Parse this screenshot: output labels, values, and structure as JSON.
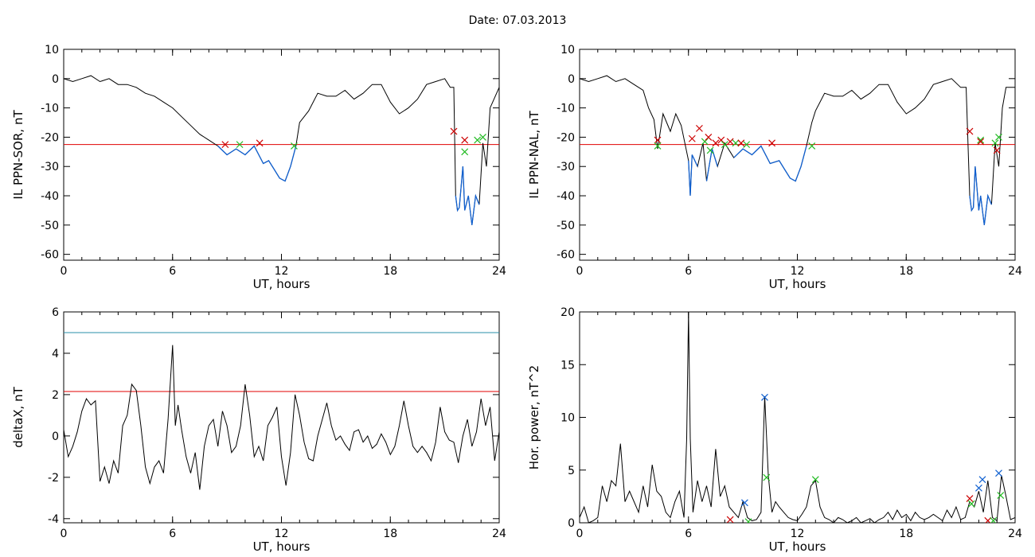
{
  "title": "Date:  07.03.2013",
  "chart_data": [
    {
      "id": "ppn-sor",
      "type": "line",
      "xlabel": "UT, hours",
      "ylabel": "IL PPN-SOR, nT",
      "xlim": [
        0,
        24
      ],
      "ylim": [
        -62,
        10
      ],
      "xticks": [
        0,
        6,
        12,
        18,
        24
      ],
      "yticks": [
        10,
        0,
        -10,
        -20,
        -30,
        -40,
        -50,
        -60
      ],
      "threshold": {
        "value": -22.5,
        "color": "#e00000"
      },
      "below_color": "#1060d0",
      "series": [
        {
          "color": "#000000",
          "x": [
            0,
            0.5,
            1,
            1.5,
            2,
            2.5,
            3,
            3.5,
            4,
            4.5,
            5,
            5.5,
            6,
            6.5,
            7,
            7.5,
            8,
            8.5,
            9,
            9.5,
            10,
            10.5,
            11,
            11.3,
            11.6,
            11.9,
            12.2,
            12.5,
            12.8,
            13,
            13.5,
            14,
            14.5,
            15,
            15.5,
            16,
            16.5,
            17,
            17.5,
            18,
            18.5,
            19,
            19.5,
            20,
            20.5,
            21,
            21.3,
            21.5,
            21.6,
            21.7,
            21.8,
            22,
            22.1,
            22.3,
            22.5,
            22.7,
            22.9,
            23.1,
            23.3,
            23.5,
            24
          ],
          "y": [
            0,
            -1,
            0,
            1,
            -1,
            0,
            -2,
            -2,
            -3,
            -5,
            -6,
            -8,
            -10,
            -13,
            -16,
            -19,
            -21,
            -23,
            -26,
            -24,
            -26,
            -23,
            -29,
            -28,
            -31,
            -34,
            -35,
            -30,
            -23,
            -15,
            -11,
            -5,
            -6,
            -6,
            -4,
            -7,
            -5,
            -2,
            -2,
            -8,
            -12,
            -10,
            -7,
            -2,
            -1,
            0,
            -3,
            -3,
            -40,
            -45,
            -44,
            -30,
            -45,
            -40,
            -50,
            -40,
            -43,
            -22,
            -30,
            -10,
            -3
          ]
        }
      ],
      "markers": [
        {
          "x": 8.9,
          "y": -22.5,
          "color": "#cc0000"
        },
        {
          "x": 9.7,
          "y": -22.5,
          "color": "#22bb22"
        },
        {
          "x": 10.8,
          "y": -22.0,
          "color": "#cc0000"
        },
        {
          "x": 12.7,
          "y": -23.0,
          "color": "#22bb22"
        },
        {
          "x": 21.5,
          "y": -18.0,
          "color": "#cc0000"
        },
        {
          "x": 22.1,
          "y": -25.0,
          "color": "#22bb22"
        },
        {
          "x": 22.1,
          "y": -21.0,
          "color": "#cc0000"
        },
        {
          "x": 22.8,
          "y": -21.0,
          "color": "#22bb22"
        },
        {
          "x": 23.1,
          "y": -20.0,
          "color": "#22bb22"
        }
      ]
    },
    {
      "id": "ppn-nal",
      "type": "line",
      "xlabel": "UT, hours",
      "ylabel": "IL PPN-NAL, nT",
      "xlim": [
        0,
        24
      ],
      "ylim": [
        -62,
        10
      ],
      "xticks": [
        0,
        6,
        12,
        18,
        24
      ],
      "yticks": [
        10,
        0,
        -10,
        -20,
        -30,
        -40,
        -50,
        -60
      ],
      "threshold": {
        "value": -22.5,
        "color": "#e00000"
      },
      "below_color": "#1060d0",
      "series": [
        {
          "color": "#000000",
          "x": [
            0,
            0.5,
            1,
            1.5,
            2,
            2.5,
            3,
            3.5,
            3.8,
            4.1,
            4.3,
            4.6,
            5,
            5.3,
            5.6,
            6,
            6.1,
            6.2,
            6.5,
            6.8,
            7,
            7.3,
            7.6,
            8,
            8.5,
            9,
            9.5,
            10,
            10.5,
            11,
            11.3,
            11.6,
            11.9,
            12.2,
            12.5,
            12.8,
            13,
            13.5,
            14,
            14.5,
            15,
            15.5,
            16,
            16.5,
            17,
            17.5,
            18,
            18.5,
            19,
            19.5,
            20,
            20.5,
            21,
            21.3,
            21.5,
            21.6,
            21.7,
            21.8,
            22,
            22.1,
            22.3,
            22.5,
            22.7,
            22.9,
            23.1,
            23.3,
            23.5,
            24
          ],
          "y": [
            0,
            -1,
            0,
            1,
            -1,
            0,
            -2,
            -4,
            -10,
            -14,
            -24,
            -12,
            -18,
            -12,
            -16,
            -28,
            -40,
            -26,
            -30,
            -22,
            -35,
            -24,
            -30,
            -22,
            -27,
            -24,
            -26,
            -23,
            -29,
            -28,
            -31,
            -34,
            -35,
            -30,
            -23,
            -15,
            -11,
            -5,
            -6,
            -6,
            -4,
            -7,
            -5,
            -2,
            -2,
            -8,
            -12,
            -10,
            -7,
            -2,
            -1,
            0,
            -3,
            -3,
            -40,
            -45,
            -44,
            -30,
            -45,
            -40,
            -50,
            -40,
            -43,
            -22,
            -30,
            -10,
            -3,
            -3
          ]
        }
      ],
      "markers": [
        {
          "x": 4.3,
          "y": -21.0,
          "color": "#cc0000"
        },
        {
          "x": 4.3,
          "y": -23.0,
          "color": "#22bb22"
        },
        {
          "x": 6.2,
          "y": -20.5,
          "color": "#cc0000"
        },
        {
          "x": 6.6,
          "y": -17.0,
          "color": "#cc0000"
        },
        {
          "x": 6.9,
          "y": -21.5,
          "color": "#22bb22"
        },
        {
          "x": 7.1,
          "y": -20.0,
          "color": "#cc0000"
        },
        {
          "x": 7.2,
          "y": -24.5,
          "color": "#22bb22"
        },
        {
          "x": 7.5,
          "y": -22.0,
          "color": "#cc0000"
        },
        {
          "x": 7.8,
          "y": -21.0,
          "color": "#cc0000"
        },
        {
          "x": 8.0,
          "y": -22.5,
          "color": "#22bb22"
        },
        {
          "x": 8.3,
          "y": -21.5,
          "color": "#cc0000"
        },
        {
          "x": 8.6,
          "y": -22.0,
          "color": "#22bb22"
        },
        {
          "x": 8.9,
          "y": -22.0,
          "color": "#cc0000"
        },
        {
          "x": 9.2,
          "y": -22.5,
          "color": "#22bb22"
        },
        {
          "x": 10.6,
          "y": -22.0,
          "color": "#cc0000"
        },
        {
          "x": 12.8,
          "y": -23.0,
          "color": "#22bb22"
        },
        {
          "x": 21.5,
          "y": -18.0,
          "color": "#cc0000"
        },
        {
          "x": 22.1,
          "y": -21.0,
          "color": "#22bb22"
        },
        {
          "x": 22.1,
          "y": -21.5,
          "color": "#cc0000"
        },
        {
          "x": 22.9,
          "y": -22.0,
          "color": "#22bb22"
        },
        {
          "x": 23.1,
          "y": -20.0,
          "color": "#22bb22"
        },
        {
          "x": 23.0,
          "y": -24.5,
          "color": "#cc0000"
        }
      ]
    },
    {
      "id": "deltax",
      "type": "line",
      "xlabel": "UT, hours",
      "ylabel": "deltaX, nT",
      "xlim": [
        0,
        24
      ],
      "ylim": [
        -4.2,
        6
      ],
      "xticks": [
        0,
        6,
        12,
        18,
        24
      ],
      "yticks": [
        6,
        4,
        2,
        0,
        -2,
        -4
      ],
      "hlines": [
        {
          "value": 5.0,
          "color": "#2a8fa8"
        },
        {
          "value": 2.15,
          "color": "#e00000"
        }
      ],
      "series": [
        {
          "color": "#000000",
          "x": [
            0,
            0.25,
            0.5,
            0.75,
            1,
            1.25,
            1.5,
            1.75,
            2,
            2.25,
            2.5,
            2.75,
            3,
            3.25,
            3.5,
            3.75,
            4,
            4.25,
            4.5,
            4.75,
            5,
            5.25,
            5.5,
            5.75,
            6,
            6.15,
            6.3,
            6.5,
            6.75,
            7,
            7.25,
            7.5,
            7.75,
            8,
            8.25,
            8.5,
            8.75,
            9,
            9.25,
            9.5,
            9.75,
            10,
            10.25,
            10.5,
            10.75,
            11,
            11.25,
            11.5,
            11.75,
            12,
            12.25,
            12.5,
            12.75,
            13,
            13.25,
            13.5,
            13.75,
            14,
            14.25,
            14.5,
            14.75,
            15,
            15.25,
            15.5,
            15.75,
            16,
            16.25,
            16.5,
            16.75,
            17,
            17.25,
            17.5,
            17.75,
            18,
            18.25,
            18.5,
            18.75,
            19,
            19.25,
            19.5,
            19.75,
            20,
            20.25,
            20.5,
            20.75,
            21,
            21.25,
            21.5,
            21.75,
            22,
            22.25,
            22.5,
            22.75,
            23,
            23.25,
            23.5,
            23.75,
            24
          ],
          "y": [
            0.3,
            -1.0,
            -0.5,
            0.2,
            1.2,
            1.8,
            1.5,
            1.7,
            -2.2,
            -1.5,
            -2.3,
            -1.2,
            -1.8,
            0.5,
            1.0,
            2.5,
            2.2,
            0.5,
            -1.5,
            -2.3,
            -1.5,
            -1.2,
            -1.8,
            0.8,
            4.4,
            0.5,
            1.5,
            0.3,
            -1.0,
            -1.8,
            -0.8,
            -2.6,
            -0.5,
            0.5,
            0.8,
            -0.5,
            1.2,
            0.5,
            -0.8,
            -0.5,
            0.5,
            2.5,
            1.0,
            -1.0,
            -0.5,
            -1.2,
            0.5,
            0.9,
            1.4,
            -1.0,
            -2.4,
            -0.8,
            2.0,
            1.0,
            -0.3,
            -1.1,
            -1.2,
            0.0,
            0.8,
            1.6,
            0.5,
            -0.2,
            0.0,
            -0.4,
            -0.7,
            0.2,
            0.3,
            -0.3,
            0.0,
            -0.6,
            -0.4,
            0.1,
            -0.3,
            -0.9,
            -0.5,
            0.5,
            1.7,
            0.5,
            -0.5,
            -0.8,
            -0.5,
            -0.8,
            -1.2,
            -0.3,
            1.4,
            0.2,
            -0.2,
            -0.3,
            -1.3,
            0.0,
            0.8,
            -0.5,
            0.2,
            1.8,
            0.5,
            1.4,
            -1.2,
            0.2
          ]
        }
      ]
    },
    {
      "id": "hor-power",
      "type": "line",
      "xlabel": "UT, hours",
      "ylabel": "Hor. power, nT^2",
      "xlim": [
        0,
        24
      ],
      "ylim": [
        0,
        20
      ],
      "xticks": [
        0,
        6,
        12,
        18,
        24
      ],
      "yticks": [
        20,
        15,
        10,
        5,
        0
      ],
      "series": [
        {
          "color": "#000000",
          "x": [
            0,
            0.25,
            0.5,
            0.75,
            1,
            1.25,
            1.5,
            1.75,
            2,
            2.25,
            2.5,
            2.75,
            3,
            3.25,
            3.5,
            3.75,
            4,
            4.25,
            4.5,
            4.75,
            5,
            5.25,
            5.5,
            5.75,
            5.9,
            6.0,
            6.1,
            6.25,
            6.5,
            6.75,
            7,
            7.25,
            7.5,
            7.75,
            8,
            8.25,
            8.5,
            8.75,
            9,
            9.25,
            9.5,
            9.75,
            10,
            10.2,
            10.4,
            10.6,
            10.8,
            11,
            11.25,
            11.5,
            11.75,
            12,
            12.25,
            12.5,
            12.75,
            13,
            13.25,
            13.5,
            13.75,
            14,
            14.25,
            14.5,
            14.75,
            15,
            15.25,
            15.5,
            15.75,
            16,
            16.25,
            16.5,
            16.75,
            17,
            17.25,
            17.5,
            17.75,
            18,
            18.25,
            18.5,
            18.75,
            19,
            19.25,
            19.5,
            19.75,
            20,
            20.25,
            20.5,
            20.75,
            21,
            21.25,
            21.5,
            21.75,
            22,
            22.25,
            22.5,
            22.75,
            23,
            23.25,
            23.5,
            23.75,
            24
          ],
          "y": [
            0.5,
            1.5,
            0.0,
            0.2,
            0.5,
            3.5,
            2.0,
            4.0,
            3.5,
            7.5,
            2.0,
            3.0,
            2.0,
            1.0,
            3.5,
            1.5,
            5.5,
            3.0,
            2.5,
            1.0,
            0.5,
            2.0,
            3.0,
            0.5,
            8.0,
            20.0,
            8.0,
            1.0,
            4.0,
            2.0,
            3.5,
            1.5,
            7.0,
            2.5,
            3.5,
            1.5,
            1.0,
            0.5,
            2.0,
            0.5,
            0.2,
            0.3,
            1.0,
            12.0,
            4.5,
            1.0,
            2.0,
            1.5,
            1.0,
            0.5,
            0.3,
            0.2,
            0.8,
            1.5,
            3.5,
            4.0,
            1.5,
            0.5,
            0.3,
            0.0,
            0.5,
            0.3,
            0.0,
            0.2,
            0.5,
            0.0,
            0.2,
            0.4,
            0.0,
            0.3,
            0.5,
            1.0,
            0.3,
            1.2,
            0.5,
            0.8,
            0.2,
            1.0,
            0.5,
            0.3,
            0.5,
            0.8,
            0.5,
            0.2,
            1.2,
            0.5,
            1.5,
            0.3,
            0.5,
            2.0,
            1.5,
            3.0,
            1.0,
            4.0,
            0.5,
            0.2,
            4.5,
            2.5,
            0.3,
            0.5
          ]
        }
      ],
      "markers": [
        {
          "x": 8.3,
          "y": 0.3,
          "color": "#cc0000"
        },
        {
          "x": 9.1,
          "y": 1.9,
          "color": "#1060d0"
        },
        {
          "x": 9.3,
          "y": 0.1,
          "color": "#22bb22"
        },
        {
          "x": 10.2,
          "y": 11.9,
          "color": "#1060d0"
        },
        {
          "x": 10.3,
          "y": 4.3,
          "color": "#22bb22"
        },
        {
          "x": 13.0,
          "y": 4.1,
          "color": "#22bb22"
        },
        {
          "x": 21.5,
          "y": 2.3,
          "color": "#cc0000"
        },
        {
          "x": 21.6,
          "y": 1.8,
          "color": "#22bb22"
        },
        {
          "x": 22.0,
          "y": 3.3,
          "color": "#1060d0"
        },
        {
          "x": 22.2,
          "y": 4.1,
          "color": "#1060d0"
        },
        {
          "x": 22.5,
          "y": 0.2,
          "color": "#cc0000"
        },
        {
          "x": 22.8,
          "y": 0.2,
          "color": "#22bb22"
        },
        {
          "x": 23.1,
          "y": 4.7,
          "color": "#1060d0"
        },
        {
          "x": 23.2,
          "y": 2.6,
          "color": "#22bb22"
        }
      ]
    }
  ]
}
